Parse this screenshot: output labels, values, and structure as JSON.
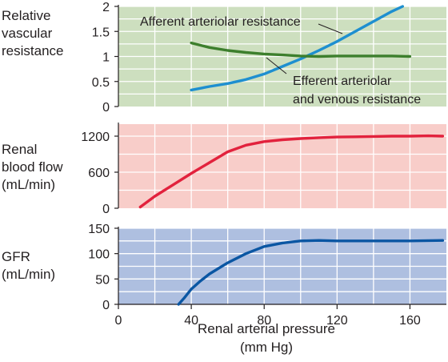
{
  "chart_data": [
    {
      "type": "line",
      "panel": "resistance",
      "ylabel_lines": [
        "Relative",
        "vascular",
        "resistance"
      ],
      "ylim": [
        0,
        2
      ],
      "yticks": [
        "0",
        "0.5",
        "1",
        "1.5",
        "2"
      ],
      "xlim": [
        0,
        180
      ],
      "grid": true,
      "background": "#cddfbf",
      "series": [
        {
          "name_lines": [
            "Afferent arteriolar resistance"
          ],
          "color": "#1e8fd0",
          "x": [
            40,
            50,
            60,
            70,
            80,
            90,
            100,
            110,
            120,
            130,
            140,
            150,
            156
          ],
          "y": [
            0.33,
            0.4,
            0.46,
            0.54,
            0.65,
            0.8,
            0.95,
            1.12,
            1.3,
            1.5,
            1.7,
            1.9,
            2.0
          ]
        },
        {
          "name_lines": [
            "Efferent arteriolar",
            "and venous resistance"
          ],
          "color": "#3d7f2d",
          "x": [
            40,
            50,
            60,
            70,
            80,
            90,
            100,
            110,
            120,
            130,
            140,
            150,
            160
          ],
          "y": [
            1.27,
            1.18,
            1.12,
            1.08,
            1.05,
            1.03,
            1.01,
            1.0,
            1.01,
            1.01,
            1.01,
            1.01,
            1.0
          ]
        }
      ]
    },
    {
      "type": "line",
      "panel": "rbf",
      "ylabel_lines": [
        "Renal",
        "blood flow",
        "(mL/min)"
      ],
      "ylim": [
        0,
        1400
      ],
      "yticks": [
        "0",
        "600",
        "1200"
      ],
      "xlim": [
        0,
        180
      ],
      "grid": true,
      "background": "#f8cdc9",
      "series": [
        {
          "color": "#e2223d",
          "x": [
            12,
            20,
            30,
            40,
            50,
            60,
            70,
            80,
            90,
            100,
            110,
            120,
            130,
            140,
            150,
            160,
            170,
            178
          ],
          "y": [
            20,
            200,
            390,
            580,
            760,
            940,
            1050,
            1110,
            1140,
            1160,
            1175,
            1185,
            1190,
            1195,
            1200,
            1200,
            1205,
            1200
          ]
        }
      ]
    },
    {
      "type": "line",
      "panel": "gfr",
      "ylabel_lines": [
        "GFR",
        "(mL/min)"
      ],
      "ylim": [
        0,
        150
      ],
      "yticks": [
        "0",
        "50",
        "100",
        "150"
      ],
      "xlim": [
        0,
        180
      ],
      "xticks": [
        "0",
        "40",
        "80",
        "120",
        "160"
      ],
      "xlabel_lines": [
        "Renal arterial pressure",
        "(mm Hg)"
      ],
      "grid": true,
      "background": "#aebfe0",
      "series": [
        {
          "color": "#0a56a3",
          "x": [
            33,
            36,
            40,
            45,
            50,
            60,
            70,
            80,
            90,
            100,
            110,
            120,
            140,
            160,
            178
          ],
          "y": [
            0,
            12,
            30,
            46,
            60,
            82,
            100,
            114,
            121,
            125,
            126,
            125,
            125,
            125,
            126
          ]
        }
      ]
    }
  ]
}
